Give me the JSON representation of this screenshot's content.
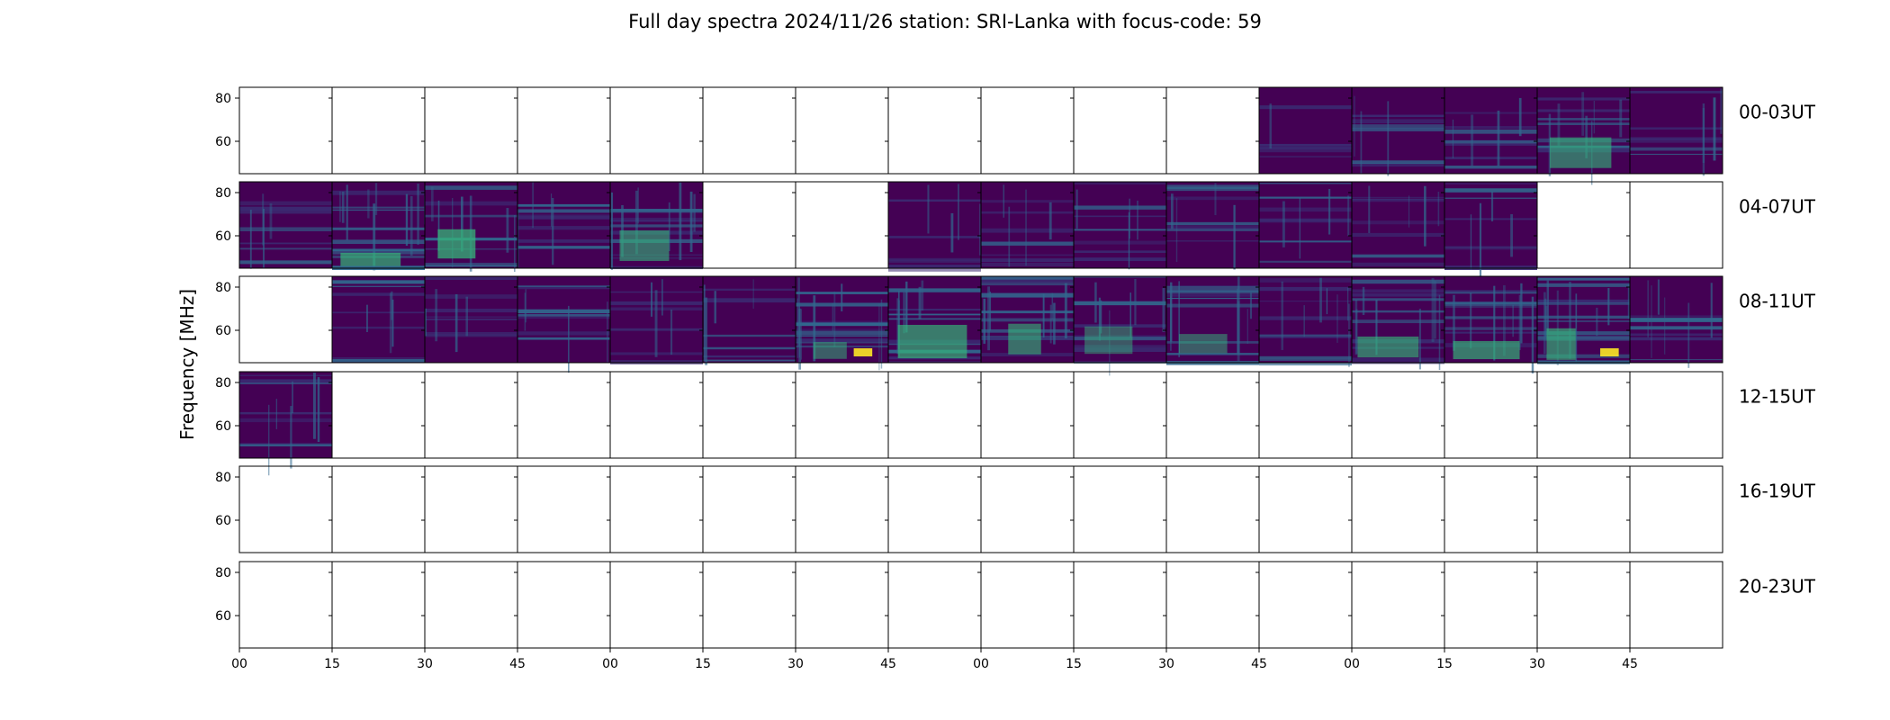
{
  "chart_data": {
    "type": "heatmap",
    "title": "Full day spectra 2024/11/26 station: SRI-Lanka with focus-code: 59",
    "ylabel": "Frequency [MHz]",
    "ylim": [
      45,
      85
    ],
    "yticks": [
      "80",
      "60"
    ],
    "xticks": [
      "00",
      "15",
      "30",
      "45",
      "00",
      "15",
      "30",
      "45",
      "00",
      "15",
      "30",
      "45",
      "00",
      "15",
      "30",
      "45"
    ],
    "colormap": "viridis",
    "colors": {
      "low": "#440154",
      "mid": "#31688e",
      "high": "#35b779",
      "peak": "#fde725"
    },
    "rows": [
      {
        "label": "00-03UT",
        "has_data": [
          false,
          false,
          false,
          false,
          false,
          false,
          false,
          false,
          false,
          false,
          false,
          true,
          true,
          true,
          true,
          true
        ],
        "activity": [
          0,
          0,
          0,
          0,
          0,
          0,
          0,
          0,
          0,
          0,
          0,
          0.1,
          0.25,
          0.35,
          0.55,
          0.3
        ]
      },
      {
        "label": "04-07UT",
        "has_data": [
          true,
          true,
          true,
          true,
          true,
          false,
          false,
          true,
          true,
          true,
          true,
          true,
          true,
          true,
          false,
          false
        ],
        "activity": [
          0.3,
          0.75,
          0.55,
          0.3,
          0.6,
          0,
          0,
          0.3,
          0.35,
          0.3,
          0.3,
          0.35,
          0.3,
          0.3,
          0,
          0
        ]
      },
      {
        "label": "08-11UT",
        "has_data": [
          false,
          true,
          true,
          true,
          true,
          true,
          true,
          true,
          true,
          true,
          true,
          true,
          true,
          true,
          true,
          true
        ],
        "activity": [
          0,
          0.3,
          0.3,
          0.3,
          0.35,
          0.35,
          0.8,
          0.55,
          0.6,
          0.55,
          0.6,
          0.5,
          0.6,
          0.6,
          0.85,
          0.45
        ]
      },
      {
        "label": "12-15UT",
        "has_data": [
          true,
          false,
          false,
          false,
          false,
          false,
          false,
          false,
          false,
          false,
          false,
          false,
          false,
          false,
          false,
          false
        ],
        "activity": [
          0.45,
          0,
          0,
          0,
          0,
          0,
          0,
          0,
          0,
          0,
          0,
          0,
          0,
          0,
          0,
          0
        ]
      },
      {
        "label": "16-19UT",
        "has_data": [
          false,
          false,
          false,
          false,
          false,
          false,
          false,
          false,
          false,
          false,
          false,
          false,
          false,
          false,
          false,
          false
        ],
        "activity": [
          0,
          0,
          0,
          0,
          0,
          0,
          0,
          0,
          0,
          0,
          0,
          0,
          0,
          0,
          0,
          0
        ]
      },
      {
        "label": "20-23UT",
        "has_data": [
          false,
          false,
          false,
          false,
          false,
          false,
          false,
          false,
          false,
          false,
          false,
          false,
          false,
          false,
          false,
          false
        ],
        "activity": [
          0,
          0,
          0,
          0,
          0,
          0,
          0,
          0,
          0,
          0,
          0,
          0,
          0,
          0,
          0,
          0
        ]
      }
    ]
  }
}
